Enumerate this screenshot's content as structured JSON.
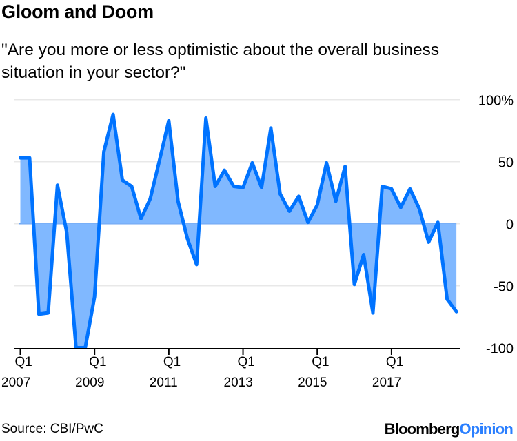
{
  "title": "Gloom and Doom",
  "subtitle": "\"Are you more or less optimistic about the overall business situation in your sector?\"",
  "source": "Source: CBI/PwC",
  "logo": {
    "part1": "Bloomberg",
    "part2": "Opinion"
  },
  "colors": {
    "line": "#0073ff",
    "fill": "#80b8ff",
    "grid": "#e8e8e8"
  },
  "chart_data": {
    "type": "area",
    "title": "Gloom and Doom",
    "ylim": [
      -100,
      100
    ],
    "y_ticks": [
      {
        "value": 100,
        "label": "100%"
      },
      {
        "value": 50,
        "label": "50"
      },
      {
        "value": 0,
        "label": "0"
      },
      {
        "value": -50,
        "label": "-50"
      },
      {
        "value": -100,
        "label": "-100"
      }
    ],
    "x_ticks": [
      {
        "index": 0,
        "q": "Q1",
        "year": "2007"
      },
      {
        "index": 8,
        "q": "Q1",
        "year": "2009"
      },
      {
        "index": 16,
        "q": "Q1",
        "year": "2011"
      },
      {
        "index": 24,
        "q": "Q1",
        "year": "2013"
      },
      {
        "index": 32,
        "q": "Q1",
        "year": "2015"
      },
      {
        "index": 40,
        "q": "Q1",
        "year": "2017"
      }
    ],
    "grid": true,
    "x": [
      "Q1 2007",
      "Q2 2007",
      "Q3 2007",
      "Q4 2007",
      "Q1 2008",
      "Q2 2008",
      "Q3 2008",
      "Q4 2008",
      "Q1 2009",
      "Q2 2009",
      "Q3 2009",
      "Q4 2009",
      "Q1 2010",
      "Q2 2010",
      "Q3 2010",
      "Q4 2010",
      "Q1 2011",
      "Q2 2011",
      "Q3 2011",
      "Q4 2011",
      "Q1 2012",
      "Q2 2012",
      "Q3 2012",
      "Q4 2012",
      "Q1 2013",
      "Q2 2013",
      "Q3 2013",
      "Q4 2013",
      "Q1 2014",
      "Q2 2014",
      "Q3 2014",
      "Q4 2014",
      "Q1 2015",
      "Q2 2015",
      "Q3 2015",
      "Q4 2015",
      "Q1 2016",
      "Q2 2016",
      "Q3 2016",
      "Q4 2016",
      "Q1 2017",
      "Q2 2017",
      "Q3 2017",
      "Q4 2017",
      "Q1 2018",
      "Q2 2018",
      "Q3 2018",
      "Q4 2018"
    ],
    "values": [
      53,
      53,
      -73,
      -72,
      31,
      -7,
      -100,
      -100,
      -59,
      58,
      88,
      35,
      30,
      4,
      20,
      51,
      83,
      18,
      -12,
      -33,
      85,
      30,
      43,
      30,
      29,
      49,
      29,
      77,
      24,
      10,
      22,
      1,
      15,
      49,
      18,
      46,
      -49,
      -25,
      -72,
      30,
      28,
      13,
      28,
      12,
      -15,
      1,
      -61,
      -71
    ]
  }
}
